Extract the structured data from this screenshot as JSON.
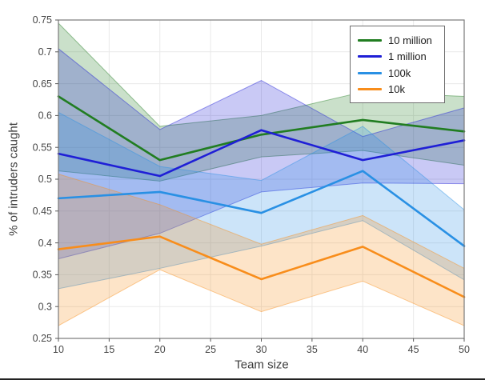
{
  "chart_data": {
    "type": "line",
    "title": "",
    "xlabel": "Team size",
    "ylabel": "% of intruders caught",
    "xlim": [
      10,
      50
    ],
    "ylim": [
      0.25,
      0.75
    ],
    "x_ticks": [
      10,
      15,
      20,
      25,
      30,
      35,
      40,
      45,
      50
    ],
    "y_ticks": [
      0.25,
      0.3,
      0.35,
      0.4,
      0.45,
      0.5,
      0.55,
      0.6,
      0.65,
      0.7,
      0.75
    ],
    "y_tick_labels": [
      "0.25",
      "0.3",
      "0.35",
      "0.4",
      "0.45",
      "0.5",
      "0.55",
      "0.6",
      "0.65",
      "0.7",
      "0.75"
    ],
    "grid": true,
    "legend_position": "top-right",
    "x": [
      10,
      20,
      30,
      40,
      50
    ],
    "series": [
      {
        "name": "10 million",
        "color": "#217d21",
        "values": [
          0.63,
          0.53,
          0.57,
          0.593,
          0.575
        ],
        "band_lower": [
          0.513,
          0.497,
          0.535,
          0.545,
          0.522
        ],
        "band_upper": [
          0.745,
          0.583,
          0.6,
          0.637,
          0.63
        ]
      },
      {
        "name": "1 million",
        "color": "#1f1fd6",
        "values": [
          0.54,
          0.505,
          0.577,
          0.53,
          0.561
        ],
        "band_lower": [
          0.375,
          0.415,
          0.48,
          0.494,
          0.493
        ],
        "band_upper": [
          0.705,
          0.578,
          0.655,
          0.567,
          0.612
        ]
      },
      {
        "name": "100k",
        "color": "#2990e4",
        "values": [
          0.47,
          0.48,
          0.447,
          0.513,
          0.395
        ],
        "band_lower": [
          0.328,
          0.36,
          0.395,
          0.435,
          0.342
        ],
        "band_upper": [
          0.605,
          0.52,
          0.498,
          0.583,
          0.452
        ]
      },
      {
        "name": "10k",
        "color": "#f88d1b",
        "values": [
          0.39,
          0.41,
          0.343,
          0.394,
          0.315
        ],
        "band_lower": [
          0.27,
          0.358,
          0.292,
          0.34,
          0.27
        ],
        "band_upper": [
          0.508,
          0.46,
          0.398,
          0.443,
          0.36
        ]
      }
    ],
    "style": {
      "grid_color": "#e9e9e9",
      "spine_color": "#7a7a7a",
      "tick_color": "#595959",
      "tick_label_color": "#474747",
      "band_opacity": 0.24
    }
  }
}
